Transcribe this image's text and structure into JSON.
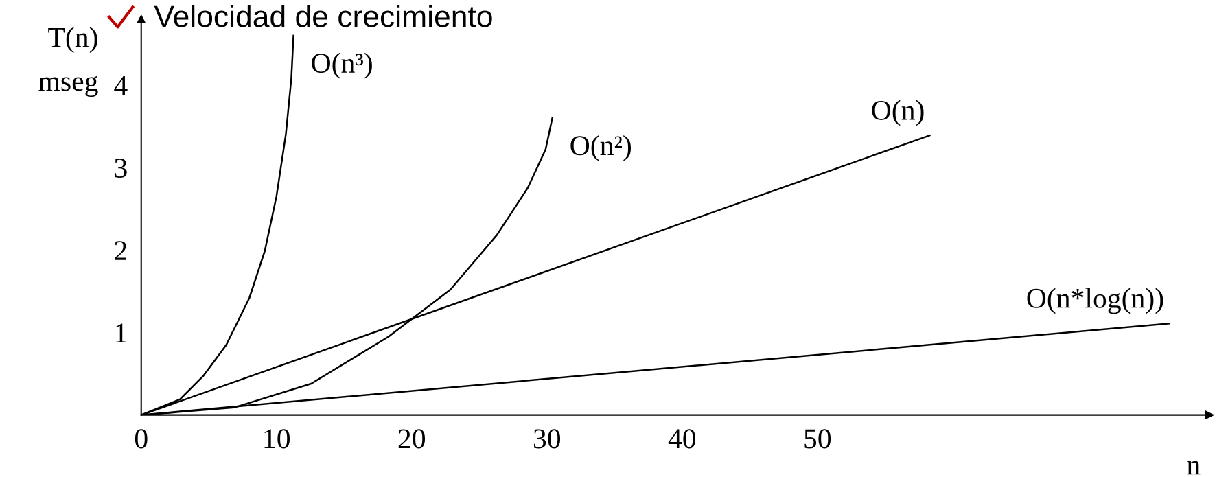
{
  "chart_data": {
    "type": "line",
    "title": "Velocidad de crecimiento",
    "ylabel": "T(n)\nmseg",
    "xlabel": "n",
    "xlim": [
      0,
      79
    ],
    "ylim": [
      0,
      4.8
    ],
    "xticks": [
      0,
      10,
      20,
      30,
      40,
      50
    ],
    "yticks": [
      1,
      2,
      3,
      4
    ],
    "grid": false,
    "legend": false,
    "marker": "none",
    "line_style": "solid",
    "series": [
      {
        "name": "O(n³)",
        "color": "#000000",
        "x": [
          0,
          2.86,
          4.57,
          6.29,
          8.0,
          9.14,
          10.0,
          10.7,
          11.1,
          11.26
        ],
        "values": [
          0,
          0.19,
          0.47,
          0.85,
          1.42,
          1.99,
          2.65,
          3.41,
          4.08,
          4.6
        ]
      },
      {
        "name": "O(n²)",
        "color": "#000000",
        "x": [
          0,
          6.86,
          12.57,
          18.29,
          22.86,
          26.29,
          28.57,
          29.9,
          30.4
        ],
        "values": [
          0,
          0.09,
          0.38,
          0.95,
          1.52,
          2.18,
          2.75,
          3.22,
          3.6
        ]
      },
      {
        "name": "O(n)",
        "color": "#000000",
        "x": [
          0,
          58.3
        ],
        "values": [
          0,
          3.39
        ]
      },
      {
        "name": "O(n*log(n))",
        "color": "#000000",
        "x": [
          0,
          76.0
        ],
        "values": [
          0,
          1.11
        ]
      }
    ]
  }
}
